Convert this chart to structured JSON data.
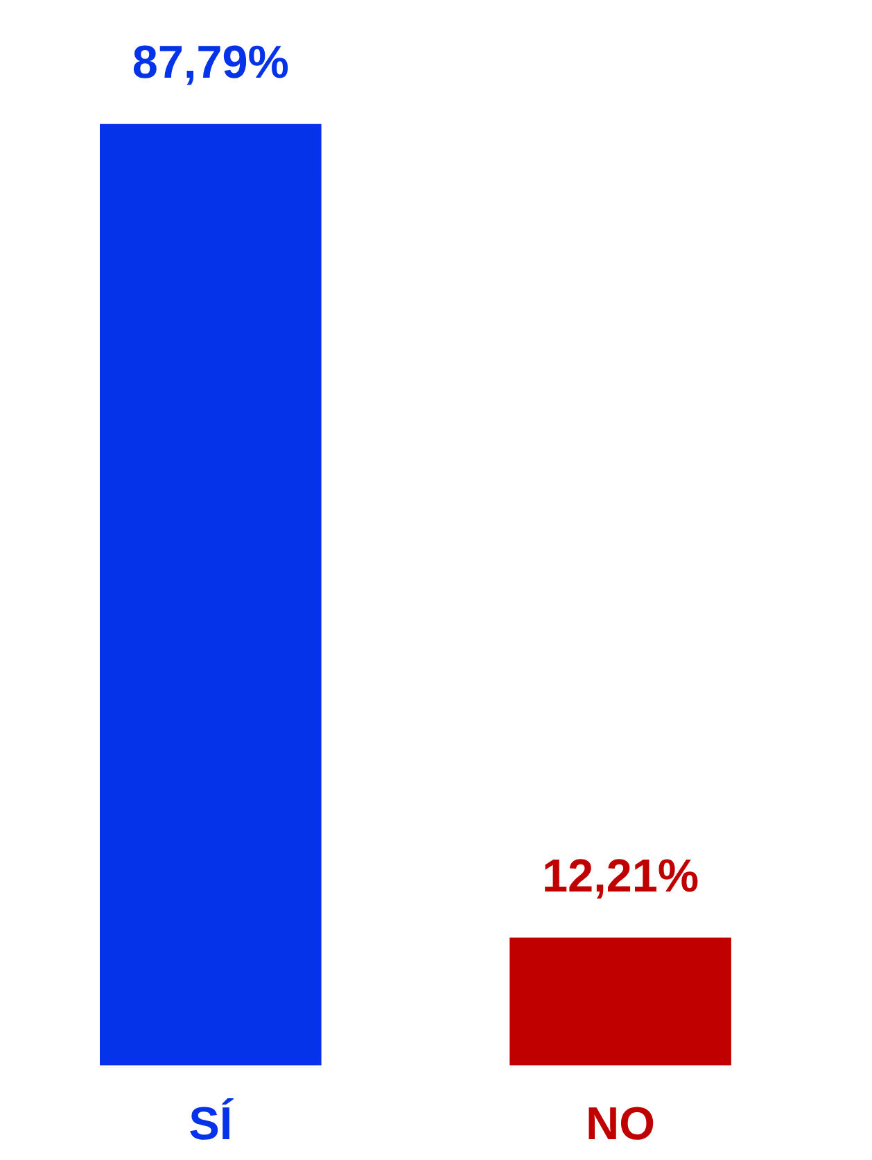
{
  "chart_data": {
    "type": "bar",
    "categories": [
      "SÍ",
      "NO"
    ],
    "values": [
      87.79,
      12.21
    ],
    "colors": [
      "#0533ea",
      "#c00000"
    ],
    "value_labels": [
      "87,79%",
      "12,21%"
    ]
  }
}
